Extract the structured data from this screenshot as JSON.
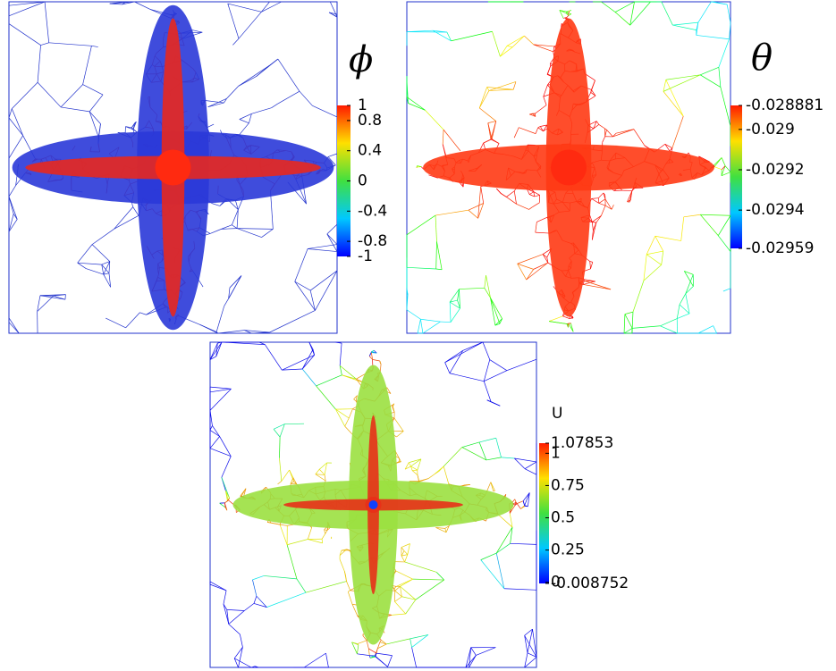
{
  "panels": [
    {
      "symbol": "ϕ",
      "colorbar": {
        "ticks": [
          1,
          0.8,
          0.4,
          0,
          -0.4,
          -0.8,
          -1
        ]
      }
    },
    {
      "symbol": "θ",
      "colorbar": {
        "ticks": [
          -0.028881,
          -0.029,
          -0.0292,
          -0.0294,
          -0.02959
        ]
      }
    },
    {
      "symbol": "U",
      "colorbar": {
        "ticks": [
          1.07853,
          1,
          0.75,
          0.5,
          0.25,
          0,
          -0.008752
        ]
      }
    }
  ]
}
